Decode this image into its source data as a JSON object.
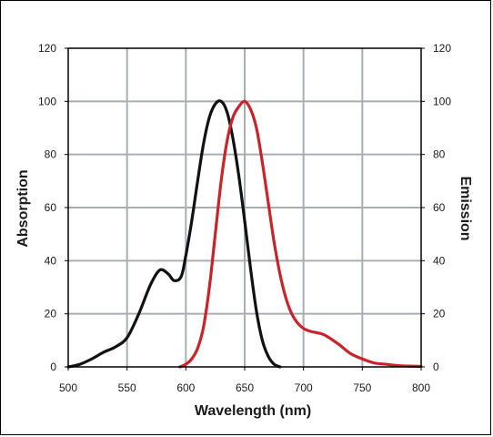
{
  "chart_data": {
    "type": "line",
    "xlabel": "Wavelength (nm)",
    "ylabel_left": "Absorption",
    "ylabel_right": "Emission",
    "xlim": [
      500,
      800
    ],
    "ylim": [
      0,
      120
    ],
    "x_ticks": [
      500,
      550,
      600,
      650,
      700,
      750,
      800
    ],
    "y_ticks": [
      0,
      20,
      40,
      60,
      80,
      100,
      120
    ],
    "grid": true,
    "legend": "none",
    "series": [
      {
        "color": "#111111",
        "axis": "left",
        "points": [
          [
            500,
            0
          ],
          [
            510,
            1
          ],
          [
            520,
            3
          ],
          [
            530,
            5.5
          ],
          [
            540,
            7.5
          ],
          [
            550,
            11
          ],
          [
            560,
            20
          ],
          [
            570,
            31
          ],
          [
            578,
            36.5
          ],
          [
            585,
            35
          ],
          [
            590,
            32.5
          ],
          [
            596,
            34
          ],
          [
            600,
            42
          ],
          [
            605,
            55
          ],
          [
            610,
            70
          ],
          [
            615,
            84
          ],
          [
            620,
            94
          ],
          [
            625,
            99
          ],
          [
            630,
            100
          ],
          [
            635,
            96
          ],
          [
            640,
            86
          ],
          [
            645,
            72
          ],
          [
            650,
            55
          ],
          [
            655,
            37
          ],
          [
            660,
            21
          ],
          [
            665,
            10
          ],
          [
            670,
            4
          ],
          [
            675,
            1
          ],
          [
            680,
            0
          ]
        ]
      },
      {
        "color": "#c8242b",
        "axis": "right",
        "points": [
          [
            595,
            0
          ],
          [
            600,
            1
          ],
          [
            605,
            3
          ],
          [
            610,
            7
          ],
          [
            615,
            15
          ],
          [
            620,
            30
          ],
          [
            625,
            50
          ],
          [
            630,
            70
          ],
          [
            635,
            85
          ],
          [
            640,
            94
          ],
          [
            645,
            98
          ],
          [
            650,
            100
          ],
          [
            655,
            97
          ],
          [
            660,
            90
          ],
          [
            665,
            77
          ],
          [
            670,
            62
          ],
          [
            675,
            47
          ],
          [
            680,
            35
          ],
          [
            685,
            26
          ],
          [
            690,
            20
          ],
          [
            695,
            16.5
          ],
          [
            700,
            14.5
          ],
          [
            705,
            13.5
          ],
          [
            710,
            13
          ],
          [
            715,
            12.5
          ],
          [
            720,
            11.5
          ],
          [
            730,
            8.5
          ],
          [
            740,
            5
          ],
          [
            750,
            3
          ],
          [
            760,
            1.5
          ],
          [
            770,
            1
          ],
          [
            780,
            0.5
          ],
          [
            790,
            0.3
          ],
          [
            800,
            0.2
          ]
        ]
      }
    ]
  }
}
